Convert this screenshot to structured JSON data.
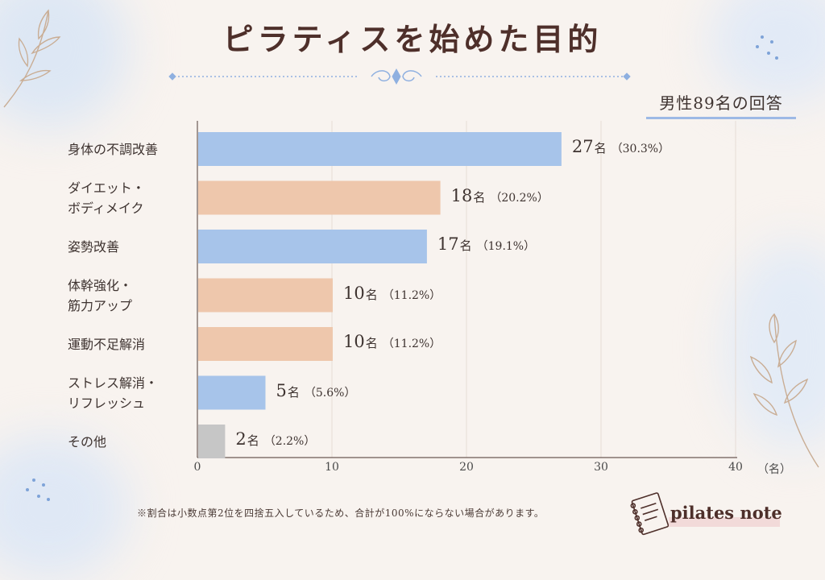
{
  "title": "ピラティスを始めた目的",
  "subtitle": "男性89名の回答",
  "footnote": "※割合は小数点第2位を四捨五入しているため、合計が100%にならない場合があります。",
  "brand": "pilates note",
  "colors": {
    "blue": "#a7c4ea",
    "peach": "#eec7ac",
    "gray": "#c6c6c6",
    "title": "#4e2f2a"
  },
  "chart_data": {
    "type": "bar",
    "orientation": "horizontal",
    "xlim": [
      0,
      40
    ],
    "xticks": [
      "0",
      "10",
      "20",
      "30",
      "40"
    ],
    "xunit": "（名）",
    "grid": true,
    "categories": [
      {
        "label_lines": [
          "身体の不調改善"
        ],
        "value": 27,
        "value_text": "27",
        "unit": "名",
        "pct": "（30.3%）",
        "color": "#a7c4ea"
      },
      {
        "label_lines": [
          "ダイエット・",
          "ボディメイク"
        ],
        "value": 18,
        "value_text": "18",
        "unit": "名",
        "pct": "（20.2%）",
        "color": "#eec7ac"
      },
      {
        "label_lines": [
          "姿勢改善"
        ],
        "value": 17,
        "value_text": "17",
        "unit": "名",
        "pct": "（19.1%）",
        "color": "#a7c4ea"
      },
      {
        "label_lines": [
          "体幹強化・",
          "筋力アップ"
        ],
        "value": 10,
        "value_text": "10",
        "unit": "名",
        "pct": "（11.2%）",
        "color": "#eec7ac"
      },
      {
        "label_lines": [
          "運動不足解消"
        ],
        "value": 10,
        "value_text": "10",
        "unit": "名",
        "pct": "（11.2%）",
        "color": "#eec7ac"
      },
      {
        "label_lines": [
          "ストレス解消・",
          "リフレッシュ"
        ],
        "value": 5,
        "value_text": "5",
        "unit": "名",
        "pct": "（5.6%）",
        "color": "#a7c4ea"
      },
      {
        "label_lines": [
          "その他"
        ],
        "value": 2,
        "value_text": "2",
        "unit": "名",
        "pct": "（2.2%）",
        "color": "#c6c6c6"
      }
    ]
  }
}
